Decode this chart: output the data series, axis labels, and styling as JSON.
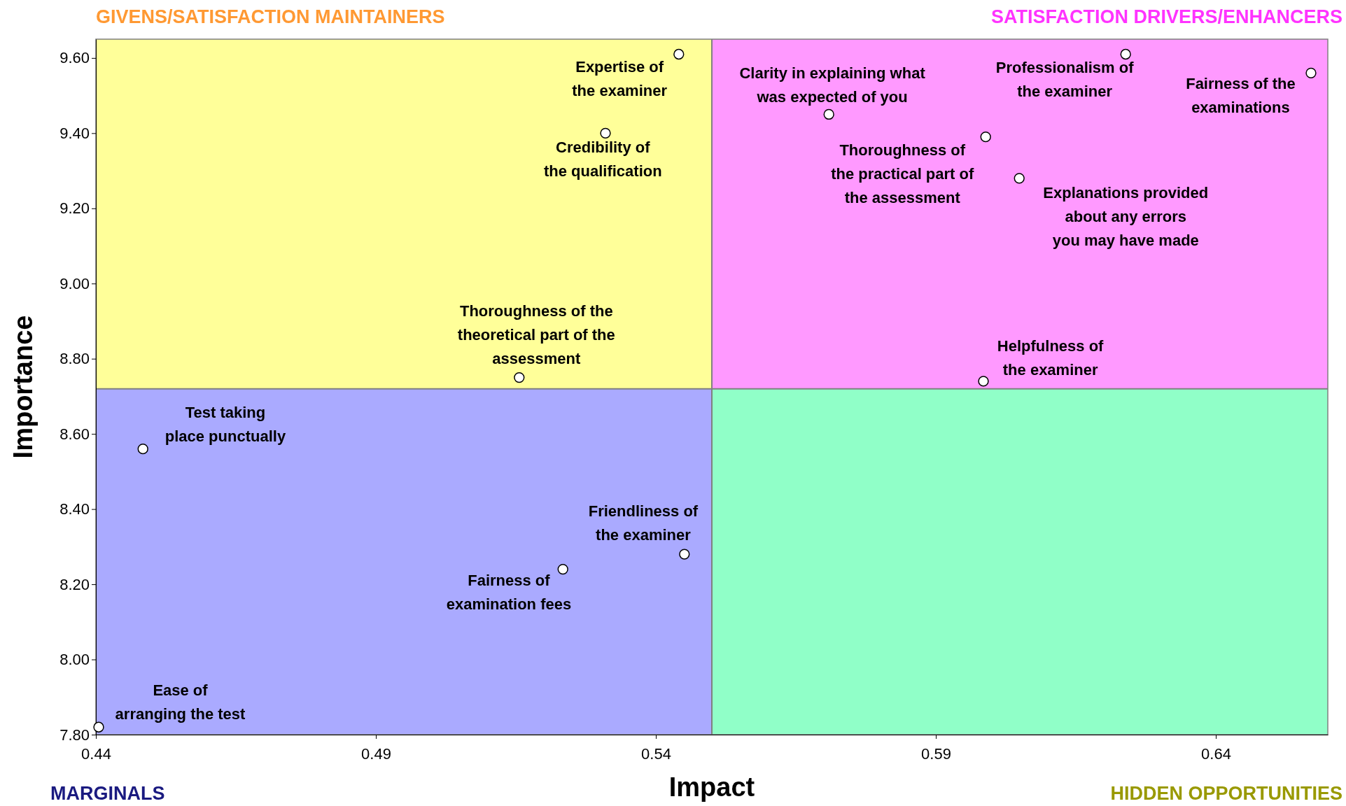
{
  "chart_data": {
    "type": "scatter",
    "xlabel": "Impact",
    "ylabel": "Importance",
    "xlim": [
      0.44,
      0.66
    ],
    "xticks": [
      0.44,
      0.49,
      0.54,
      0.59,
      0.64
    ],
    "ylim": [
      7.8,
      9.65
    ],
    "yticks": [
      {
        "value": 7.8,
        "label": "7.80"
      },
      {
        "value": 8.0,
        "label": "8.00"
      },
      {
        "value": 8.2,
        "label": "8.20"
      },
      {
        "value": 8.4,
        "label": "8.40"
      },
      {
        "value": 8.6,
        "label": "8.60"
      },
      {
        "value": 8.8,
        "label": "8.80"
      },
      {
        "value": 9.0,
        "label": "9.00"
      },
      {
        "value": 9.2,
        "label": "9.20"
      },
      {
        "value": 9.4,
        "label": "9.40"
      },
      {
        "value": 9.6,
        "label": "9.60"
      }
    ],
    "x": [
      0.5441,
      0.531,
      0.5156,
      0.4484,
      0.5451,
      0.5234,
      0.4405,
      0.5709,
      0.6239,
      0.657,
      0.5989,
      0.6049,
      0.5985
    ],
    "series": [
      {
        "color": "#ffffff",
        "values": [
          9.61,
          9.4,
          8.75,
          8.56,
          8.28,
          8.24,
          7.82,
          9.45,
          9.61,
          9.56,
          9.39,
          9.28,
          8.74
        ]
      }
    ],
    "marker": "circle",
    "grid": false,
    "ref_lines": [
      {
        "axis": "x",
        "value": 0.55,
        "color": "#808080"
      },
      {
        "axis": "y",
        "value": 8.72,
        "color": "#808080"
      }
    ],
    "annotations": [
      "GIVENS/SATISFACTION MAINTAINERS",
      "SATISFACTION DRIVERS/ENHANCERS",
      "MARGINALS",
      "HIDDEN OPPORTUNITIES",
      {
        "text": "Expertise of\nthe examiner",
        "x": 0.5441,
        "y": 9.61
      },
      {
        "text": "Credibility of\nthe qualification",
        "x": 0.531,
        "y": 9.4
      },
      {
        "text": "Thoroughness of the\ntheoretical part of the\nassessment",
        "x": 0.5156,
        "y": 8.75
      },
      {
        "text": "Test taking\nplace punctually",
        "x": 0.4484,
        "y": 8.56
      },
      {
        "text": "Friendliness of\nthe examiner",
        "x": 0.5451,
        "y": 8.28
      },
      {
        "text": "Fairness of\nexamination fees",
        "x": 0.5234,
        "y": 8.24
      },
      {
        "text": "Ease of\narranging the test",
        "x": 0.4405,
        "y": 7.82
      },
      {
        "text": "Clarity in explaining what\nwas expected of you",
        "x": 0.5709,
        "y": 9.45
      },
      {
        "text": "Professionalism of\nthe examiner",
        "x": 0.6239,
        "y": 9.61
      },
      {
        "text": "Fairness of the\nexaminations",
        "x": 0.657,
        "y": 9.56
      },
      {
        "text": "Thoroughness of\nthe practical part of\nthe assessment",
        "x": 0.5989,
        "y": 9.39
      },
      {
        "text": "Explanations provided\nabout any errors\nyou may have made",
        "x": 0.6049,
        "y": 9.28
      },
      {
        "text": "Helpfulness of\nthe examiner",
        "x": 0.5985,
        "y": 8.74
      }
    ]
  }
}
